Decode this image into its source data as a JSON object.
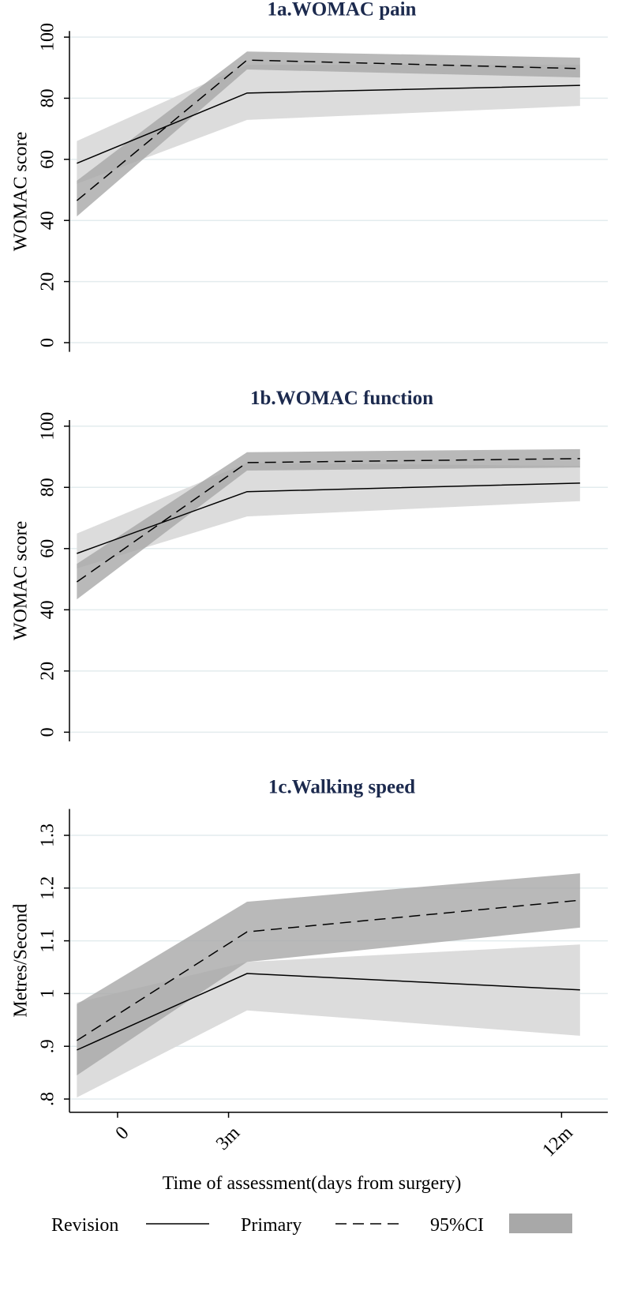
{
  "chart_data": [
    {
      "type": "line",
      "title": "1a.WOMAC pain",
      "ylabel": "WOMAC score",
      "x": [
        -1.1,
        3.5,
        12.5
      ],
      "xlim": [
        -1.3,
        13.25
      ],
      "ylim": [
        -3,
        102
      ],
      "yticks": [
        0,
        20,
        40,
        60,
        80,
        100
      ],
      "grid": true,
      "series": [
        {
          "color": "#000000",
          "dash": "solid",
          "band_color": "#dcdcdc",
          "values": [
            58.7,
            81.7,
            84.2
          ],
          "lower": [
            52,
            72.9,
            77.5
          ],
          "upper": [
            66,
            91,
            91
          ]
        },
        {
          "color": "#000000",
          "dash": "dashed",
          "band_color": "#a8a8a8",
          "values": [
            46.5,
            92.5,
            89.7
          ],
          "lower": [
            41.3,
            89.4,
            86.8
          ],
          "upper": [
            53,
            95.3,
            93.3
          ]
        }
      ]
    },
    {
      "type": "line",
      "title": "1b.WOMAC function",
      "ylabel": "WOMAC score",
      "x": [
        -1.1,
        3.5,
        12.5
      ],
      "xlim": [
        -1.3,
        13.25
      ],
      "ylim": [
        -3,
        102
      ],
      "yticks": [
        0,
        20,
        40,
        60,
        80,
        100
      ],
      "grid": true,
      "series": [
        {
          "color": "#000000",
          "dash": "solid",
          "band_color": "#dcdcdc",
          "values": [
            58.4,
            78.6,
            81.4
          ],
          "lower": [
            53.5,
            70.5,
            75.5
          ],
          "upper": [
            64.9,
            88,
            87
          ]
        },
        {
          "color": "#000000",
          "dash": "dashed",
          "band_color": "#a8a8a8",
          "values": [
            49.1,
            88.1,
            89.4
          ],
          "lower": [
            43.4,
            85.5,
            86.5
          ],
          "upper": [
            55,
            91.5,
            92.5
          ]
        }
      ]
    },
    {
      "type": "line",
      "title": "1c.Walking speed",
      "ylabel": "Metres/Second",
      "xlabel": "Time of assessment(days from surgery)",
      "x": [
        -1.1,
        3.5,
        12.5
      ],
      "xlim": [
        -1.3,
        13.25
      ],
      "xticks": [
        {
          "value": 0,
          "label": "0"
        },
        {
          "value": 3,
          "label": "3m"
        },
        {
          "value": 12,
          "label": "12m"
        }
      ],
      "ylim": [
        0.775,
        1.35
      ],
      "yticks": [
        {
          "value": 0.8,
          "label": ".8"
        },
        {
          "value": 0.9,
          "label": ".9"
        },
        1,
        1.1,
        1.2,
        1.3
      ],
      "grid": true,
      "ci_name": "95%CI",
      "series": [
        {
          "name": "Revision",
          "color": "#000000",
          "dash": "solid",
          "band_color": "#dcdcdc",
          "values": [
            0.893,
            1.038,
            1.007
          ],
          "lower": [
            0.803,
            0.968,
            0.92
          ],
          "upper": [
            0.983,
            1.06,
            1.093
          ]
        },
        {
          "name": "Primary",
          "color": "#000000",
          "dash": "dashed",
          "band_color": "#a8a8a8",
          "values": [
            0.911,
            1.117,
            1.177
          ],
          "lower": [
            0.845,
            1.06,
            1.125
          ],
          "upper": [
            0.98,
            1.174,
            1.228
          ]
        }
      ]
    }
  ]
}
